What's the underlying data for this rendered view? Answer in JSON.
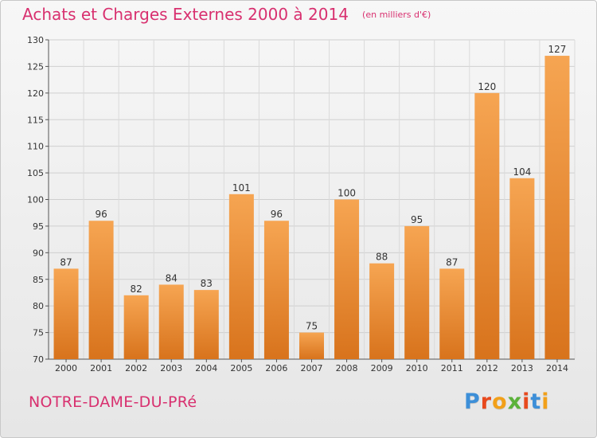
{
  "header": {
    "title": "Achats et Charges Externes 2000 à 2014",
    "subtitle": "(en milliers d'€)"
  },
  "footer": {
    "commune": "NOTRE-DAME-DU-PRé",
    "logo": "Proxiti"
  },
  "colors": {
    "title": "#d8306f",
    "bar_light": "#f6a552",
    "bar_dark": "#d8731c",
    "logo": [
      "#3d8fd8",
      "#e8491d",
      "#f2a019",
      "#5bb23a",
      "#e8491d",
      "#3d8fd8",
      "#f2a019"
    ]
  },
  "chart_data": {
    "type": "bar",
    "title": "Achats et Charges Externes 2000 à 2014",
    "subtitle": "(en milliers d'€)",
    "categories": [
      "2000",
      "2001",
      "2002",
      "2003",
      "2004",
      "2005",
      "2006",
      "2007",
      "2008",
      "2009",
      "2010",
      "2011",
      "2012",
      "2013",
      "2014"
    ],
    "values": [
      87,
      96,
      82,
      84,
      83,
      101,
      96,
      75,
      100,
      88,
      95,
      87,
      120,
      104,
      127
    ],
    "data_labels": [
      "87",
      "96",
      "82",
      "84",
      "83",
      "101",
      "96",
      "75",
      "100",
      "88",
      "95",
      "87",
      "120",
      "104",
      "127"
    ],
    "ylim": [
      70,
      130
    ],
    "yticks": [
      70,
      75,
      80,
      85,
      90,
      95,
      100,
      105,
      110,
      115,
      120,
      125,
      130
    ],
    "grid": true,
    "xlabel": "",
    "ylabel": ""
  }
}
